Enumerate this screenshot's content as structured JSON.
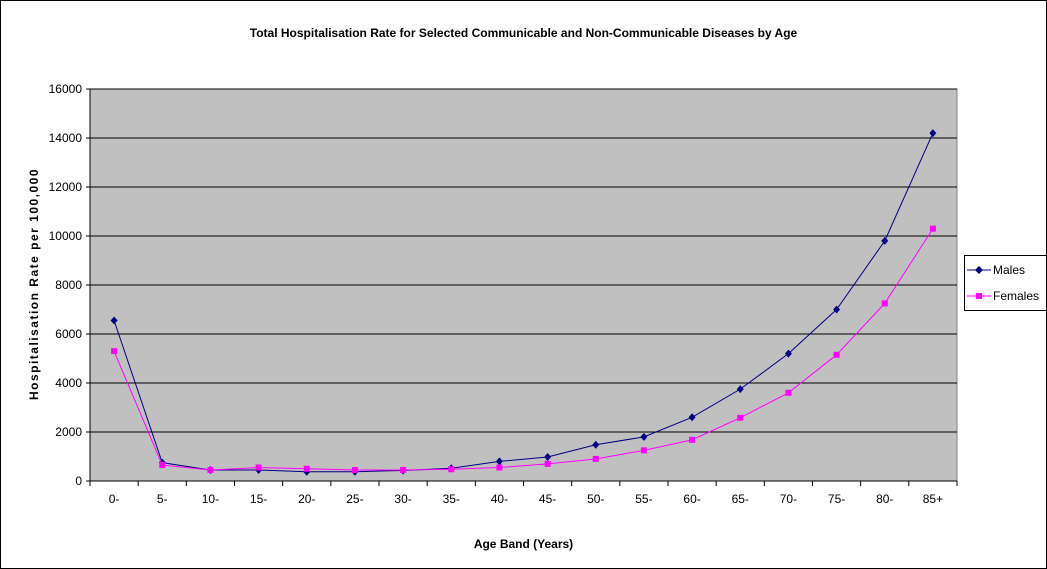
{
  "chart_data": {
    "type": "line",
    "title": "Total Hospitalisation Rate for Selected Communicable and Non-Communicable Diseases by Age",
    "xlabel": "Age Band (Years)",
    "ylabel": "Hospitalisation Rate per 100,000",
    "categories": [
      "0-",
      "5-",
      "10-",
      "15-",
      "20-",
      "25-",
      "30-",
      "35-",
      "40-",
      "45-",
      "50-",
      "55-",
      "60-",
      "65-",
      "70-",
      "75-",
      "80-",
      "85+"
    ],
    "ylim": [
      0,
      16000
    ],
    "yticks": [
      0,
      2000,
      4000,
      6000,
      8000,
      10000,
      12000,
      14000,
      16000
    ],
    "grid": true,
    "legend_position": "right",
    "series": [
      {
        "name": "Males",
        "color": "#000080",
        "marker": "diamond",
        "values": [
          6550,
          750,
          450,
          450,
          380,
          380,
          430,
          520,
          800,
          980,
          1480,
          1800,
          2600,
          3750,
          5200,
          7000,
          9800,
          14200
        ]
      },
      {
        "name": "Females",
        "color": "#ff00ff",
        "marker": "square",
        "values": [
          5300,
          650,
          450,
          550,
          500,
          450,
          450,
          480,
          550,
          700,
          900,
          1250,
          1680,
          2580,
          3600,
          5150,
          7250,
          10300
        ]
      }
    ],
    "plot_background": "#c0c0c0"
  }
}
